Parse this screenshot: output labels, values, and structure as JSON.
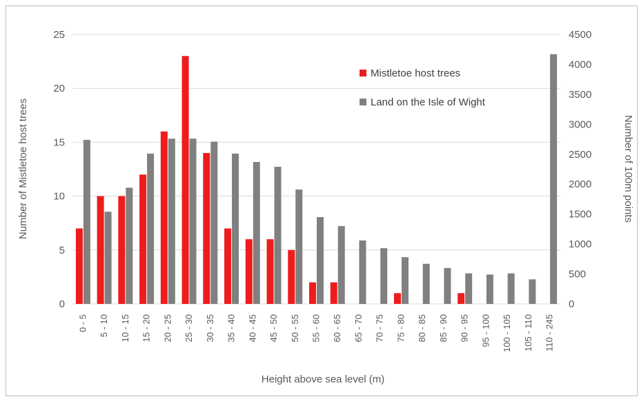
{
  "chart_data": {
    "type": "bar",
    "title": "",
    "xlabel": "Height above sea level (m)",
    "ylabel_left": "Number of Mistletoe host trees",
    "ylabel_right": "Number of 100m points",
    "categories": [
      "0 - 5",
      "5 - 10",
      "10 - 15",
      "15 - 20",
      "20 - 25",
      "25 - 30",
      "30 - 35",
      "35 - 40",
      "40 - 45",
      "45 - 50",
      "50 - 55",
      "55 - 60",
      "60 - 65",
      "65 - 70",
      "70 - 75",
      "75 - 80",
      "80 - 85",
      "85 - 90",
      "90 - 95",
      "95 - 100",
      "100 - 105",
      "105 - 110",
      "110 - 245"
    ],
    "series": [
      {
        "name": "Mistletoe host trees",
        "axis": "left",
        "color": "#ee1c1c",
        "values": [
          7,
          10,
          10,
          12,
          16,
          23,
          14,
          7,
          6,
          6,
          5,
          2,
          2,
          0,
          0,
          1,
          0,
          0,
          1,
          0,
          0,
          0,
          0
        ]
      },
      {
        "name": "Land on the Isle of Wight",
        "axis": "right",
        "color": "#808080",
        "values": [
          2740,
          1540,
          1940,
          2510,
          2760,
          2760,
          2710,
          2510,
          2370,
          2290,
          1910,
          1450,
          1300,
          1060,
          930,
          780,
          670,
          600,
          510,
          490,
          510,
          410,
          4170
        ]
      }
    ],
    "ylim_left": [
      0,
      25
    ],
    "yticks_left": [
      "0",
      "5",
      "10",
      "15",
      "20",
      "25"
    ],
    "ylim_right": [
      0,
      4500
    ],
    "yticks_right": [
      "0",
      "500",
      "1000",
      "1500",
      "2000",
      "2500",
      "3000",
      "3500",
      "4000",
      "4500"
    ],
    "grid": true,
    "legend_position": "top-right"
  }
}
